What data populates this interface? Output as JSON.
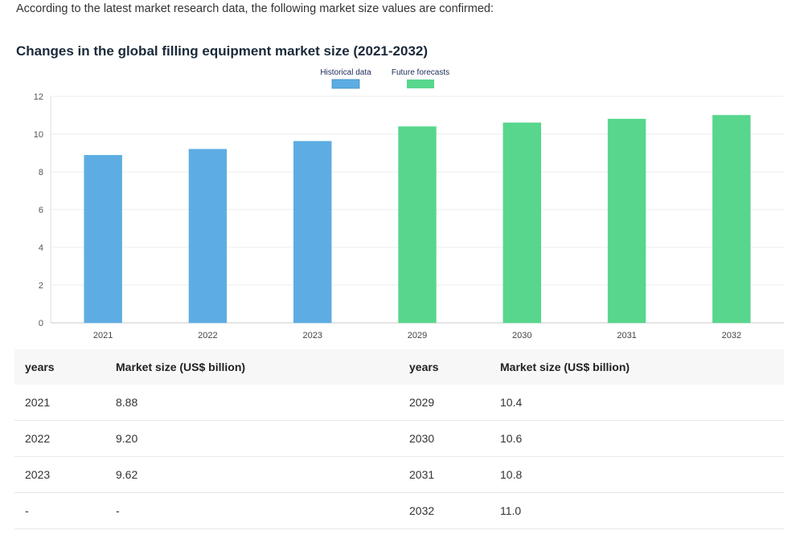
{
  "intro_text": "According to the latest market research data, the following market size values are confirmed:",
  "chart_data": {
    "type": "bar",
    "title": "Changes in the global filling equipment market size (2021-2032)",
    "categories": [
      "2021",
      "2022",
      "2023",
      "2029",
      "2030",
      "2031",
      "2032"
    ],
    "series": [
      {
        "name": "Historical data",
        "color": "#5dade2",
        "values": [
          8.88,
          9.2,
          9.62,
          null,
          null,
          null,
          null
        ]
      },
      {
        "name": "Future forecasts",
        "color": "#58d68d",
        "values": [
          null,
          null,
          null,
          10.4,
          10.6,
          10.8,
          11.0
        ]
      }
    ],
    "yticks": [
      0,
      2,
      4,
      6,
      8,
      10,
      12
    ],
    "ylim": [
      0,
      12
    ],
    "grid": true,
    "legend_position": "top-center"
  },
  "table": {
    "headers": [
      "years",
      "Market size (US$ billion)",
      "years",
      "Market size (US$ billion)"
    ],
    "rows": [
      [
        "2021",
        "8.88",
        "2029",
        "10.4"
      ],
      [
        "2022",
        "9.20",
        "2030",
        "10.6"
      ],
      [
        "2023",
        "9.62",
        "2031",
        "10.8"
      ],
      [
        "-",
        "-",
        "2032",
        "11.0"
      ]
    ]
  }
}
